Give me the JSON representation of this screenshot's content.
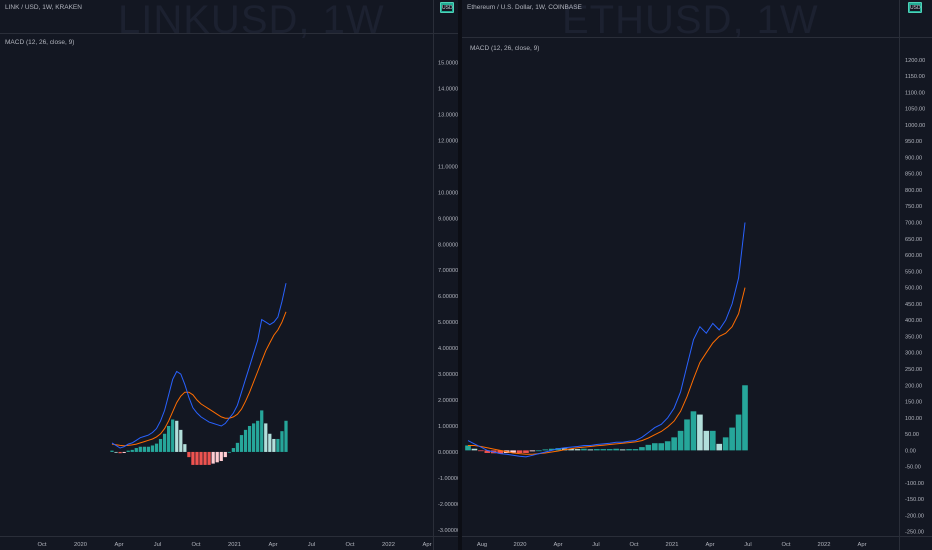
{
  "left": {
    "watermark": "LINKUSD, 1W",
    "header": "LINK / USD, 1W, KRAKEN",
    "currency": "USD",
    "indicator": "MACD (12, 26, close, 9)",
    "y_ticks": [
      "15.00000",
      "14.00000",
      "13.00000",
      "12.00000",
      "11.00000",
      "10.00000",
      "9.00000",
      "8.00000",
      "7.00000",
      "6.00000",
      "5.00000",
      "4.00000",
      "3.00000",
      "2.00000",
      "1.00000",
      "0.00000",
      "-1.00000",
      "-2.00000",
      "-3.00000"
    ],
    "x_ticks": [
      "Oct",
      "2020",
      "Apr",
      "Jul",
      "Oct",
      "2021",
      "Apr",
      "Jul",
      "Oct",
      "2022",
      "Apr"
    ]
  },
  "right": {
    "watermark": "ETHUSD, 1W",
    "header": "Ethereum / U.S. Dollar, 1W, COINBASE",
    "currency": "USD",
    "indicator": "MACD (12, 26, close, 9)",
    "y_ticks": [
      "1200.00",
      "1150.00",
      "1100.00",
      "1050.00",
      "1000.00",
      "950.00",
      "900.00",
      "850.00",
      "800.00",
      "750.00",
      "700.00",
      "650.00",
      "600.00",
      "550.00",
      "500.00",
      "450.00",
      "400.00",
      "350.00",
      "300.00",
      "250.00",
      "200.00",
      "150.00",
      "100.00",
      "50.00",
      "0.00",
      "-50.00",
      "-100.00",
      "-150.00",
      "-200.00",
      "-250.00"
    ],
    "x_ticks": [
      "Aug",
      "2020",
      "Apr",
      "Jul",
      "Oct",
      "2021",
      "Apr",
      "Jul",
      "Oct",
      "2022",
      "Apr"
    ]
  },
  "colors": {
    "background": "#131722",
    "macd_line": "#2962ff",
    "signal_line": "#ff6d00",
    "hist_up_strong": "#26a69a",
    "hist_up_weak": "#b2dfdb",
    "hist_down_strong": "#ef5350",
    "hist_down_weak": "#ffcdd2",
    "usd_badge": "#22ab94"
  },
  "chart_data": [
    {
      "type": "line",
      "title": "LINK / USD, 1W, KRAKEN",
      "indicator": "MACD (12, 26, close, 9)",
      "x_ticks": [
        "Oct",
        "2020",
        "Apr",
        "Jul",
        "Oct",
        "2021",
        "Apr",
        "Jul",
        "Oct",
        "2022",
        "Apr"
      ],
      "ylim": [
        -3.2,
        15.6
      ],
      "series": [
        {
          "name": "MACD",
          "color": "#2962ff",
          "kind": "line",
          "values": [
            0.35,
            0.25,
            0.15,
            0.2,
            0.3,
            0.35,
            0.45,
            0.55,
            0.6,
            0.65,
            0.75,
            0.9,
            1.2,
            1.6,
            2.2,
            2.8,
            3.1,
            3.0,
            2.6,
            2.1,
            1.7,
            1.5,
            1.35,
            1.25,
            1.15,
            1.1,
            1.05,
            1.0,
            1.1,
            1.3,
            1.5,
            1.8,
            2.3,
            2.8,
            3.3,
            3.8,
            4.3,
            5.1,
            5.0,
            4.9,
            5.0,
            5.2,
            5.8,
            6.5
          ]
        },
        {
          "name": "Signal",
          "color": "#ff6d00",
          "kind": "line",
          "values": [
            0.3,
            0.28,
            0.25,
            0.24,
            0.25,
            0.27,
            0.3,
            0.35,
            0.4,
            0.45,
            0.5,
            0.58,
            0.7,
            0.9,
            1.2,
            1.55,
            1.9,
            2.15,
            2.3,
            2.3,
            2.2,
            2.0,
            1.85,
            1.75,
            1.65,
            1.55,
            1.45,
            1.35,
            1.3,
            1.3,
            1.35,
            1.45,
            1.65,
            1.95,
            2.3,
            2.7,
            3.1,
            3.5,
            3.9,
            4.2,
            4.5,
            4.7,
            5.0,
            5.4
          ]
        },
        {
          "name": "Histogram",
          "kind": "histogram",
          "values": [
            0.05,
            0.0,
            -0.05,
            -0.04,
            0.05,
            0.08,
            0.15,
            0.2,
            0.2,
            0.2,
            0.25,
            0.32,
            0.5,
            0.7,
            1.0,
            1.25,
            1.2,
            0.85,
            0.3,
            -0.2,
            -0.5,
            -0.5,
            -0.5,
            -0.5,
            -0.5,
            -0.45,
            -0.4,
            -0.35,
            -0.2,
            0.0,
            0.15,
            0.35,
            0.65,
            0.85,
            1.0,
            1.1,
            1.2,
            1.6,
            1.1,
            0.7,
            0.5,
            0.5,
            0.8,
            1.2
          ]
        }
      ]
    },
    {
      "type": "line",
      "title": "Ethereum / U.S. Dollar, 1W, COINBASE",
      "indicator": "MACD (12, 26, close, 9)",
      "x_ticks": [
        "Aug",
        "2020",
        "Apr",
        "Jul",
        "Oct",
        "2021",
        "Apr",
        "Jul",
        "Oct",
        "2022",
        "Apr"
      ],
      "ylim": [
        -260,
        1230
      ],
      "series": [
        {
          "name": "MACD",
          "color": "#2962ff",
          "kind": "line",
          "values": [
            30,
            20,
            10,
            0,
            -5,
            -10,
            -12,
            -15,
            -18,
            -20,
            -15,
            -10,
            -5,
            0,
            5,
            8,
            10,
            12,
            15,
            15,
            18,
            20,
            22,
            25,
            25,
            28,
            30,
            40,
            55,
            70,
            80,
            100,
            130,
            180,
            260,
            340,
            380,
            360,
            390,
            370,
            400,
            450,
            530,
            700
          ]
        },
        {
          "name": "Signal",
          "color": "#ff6d00",
          "kind": "line",
          "values": [
            15,
            15,
            12,
            8,
            4,
            0,
            -4,
            -8,
            -10,
            -12,
            -12,
            -10,
            -8,
            -5,
            -2,
            2,
            5,
            8,
            10,
            12,
            14,
            16,
            18,
            20,
            22,
            24,
            26,
            30,
            38,
            48,
            58,
            72,
            90,
            120,
            165,
            220,
            270,
            300,
            330,
            350,
            360,
            380,
            420,
            500
          ]
        },
        {
          "name": "Histogram",
          "kind": "histogram",
          "values": [
            15,
            5,
            -2,
            -8,
            -9,
            -10,
            -8,
            -7,
            -8,
            -8,
            -3,
            0,
            3,
            5,
            7,
            6,
            5,
            4,
            5,
            3,
            4,
            4,
            4,
            5,
            3,
            4,
            4,
            10,
            17,
            22,
            22,
            28,
            40,
            60,
            95,
            120,
            110,
            60,
            60,
            20,
            40,
            70,
            110,
            200
          ]
        }
      ]
    }
  ]
}
